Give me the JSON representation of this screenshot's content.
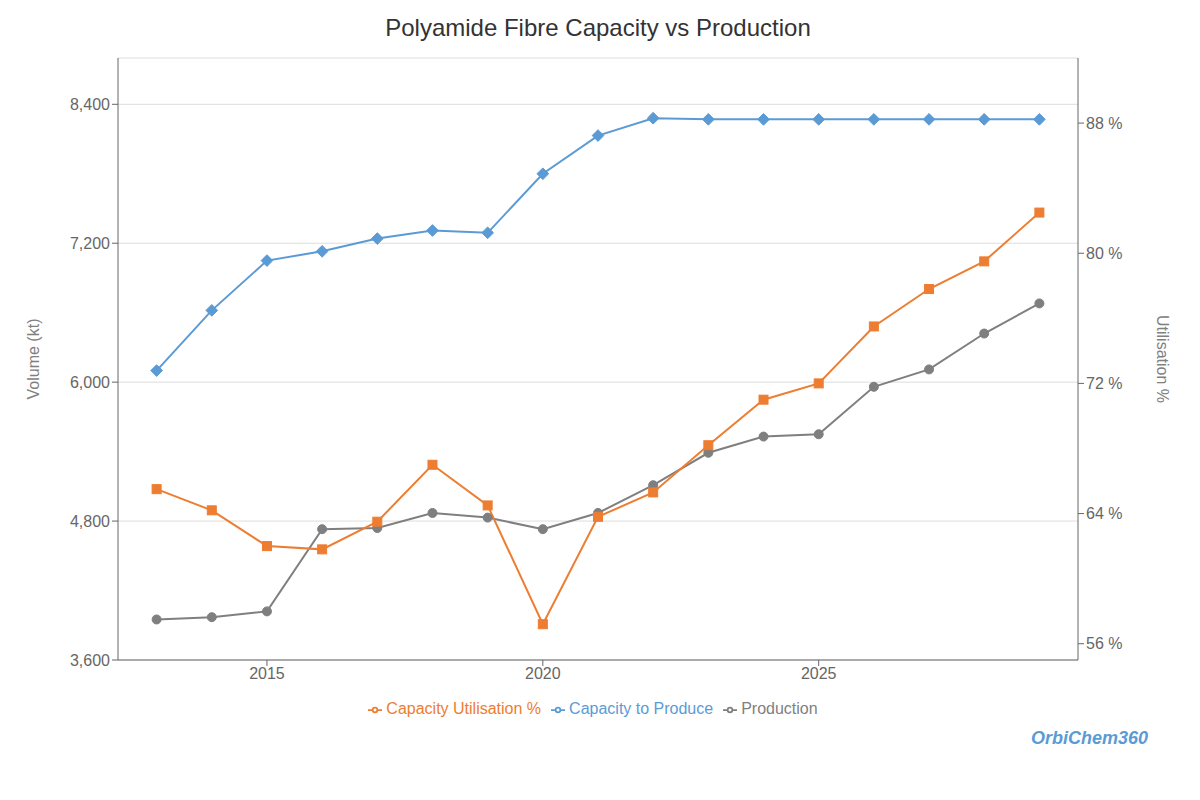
{
  "chart_data": {
    "type": "line",
    "title": "Polyamide Fibre Capacity vs Production",
    "x": [
      2013,
      2014,
      2015,
      2016,
      2017,
      2018,
      2019,
      2020,
      2021,
      2022,
      2023,
      2024,
      2025,
      2026,
      2027,
      2028,
      2029
    ],
    "series": [
      {
        "name": "Production",
        "color": "#7f7f7f",
        "marker": "circle",
        "values": [
          3950,
          3970,
          4020,
          4730,
          4740,
          4870,
          4830,
          4730,
          4870,
          5110,
          5390,
          5530,
          5550,
          5960,
          6110,
          6420,
          6680
        ]
      },
      {
        "name": "Capacity to Produce",
        "color": "#5b9bd5",
        "marker": "diamond",
        "values": [
          6100,
          6620,
          7050,
          7130,
          7240,
          7310,
          7290,
          7800,
          8130,
          8280,
          8270,
          8270,
          8270,
          8270,
          8270,
          8270,
          8270
        ]
      },
      {
        "name": "Capacity Utilisation %",
        "color": "#ed7d31",
        "marker": "square",
        "axis": "y2",
        "values": [
          65.5,
          64.2,
          62.0,
          61.8,
          63.5,
          67.0,
          64.5,
          57.2,
          63.8,
          65.3,
          68.2,
          71.0,
          72.0,
          75.5,
          77.8,
          79.5,
          82.5
        ]
      }
    ],
    "ylabel": "Volume (kt)",
    "y2label": "Utilisation %",
    "xlim": [
      2012.3,
      2029.7
    ],
    "xticks": [
      2015,
      2020,
      2025
    ],
    "ylim": [
      3600,
      8800
    ],
    "yticks": [
      {
        "value": 3600,
        "label": "3,600"
      },
      {
        "value": 4800,
        "label": "4,800"
      },
      {
        "value": 6000,
        "label": "6,000"
      },
      {
        "value": 7200,
        "label": "7,200"
      },
      {
        "value": 8400,
        "label": "8,400"
      }
    ],
    "y2lim": [
      55,
      92
    ],
    "y2ticks": [
      {
        "value": 56,
        "label": "56 %"
      },
      {
        "value": 64,
        "label": "64 %"
      },
      {
        "value": 72,
        "label": "72 %"
      },
      {
        "value": 80,
        "label": "80 %"
      },
      {
        "value": 88,
        "label": "88 %"
      }
    ],
    "grid": true,
    "legend": "bottom",
    "annotations": [
      "OrbiChem360"
    ]
  }
}
